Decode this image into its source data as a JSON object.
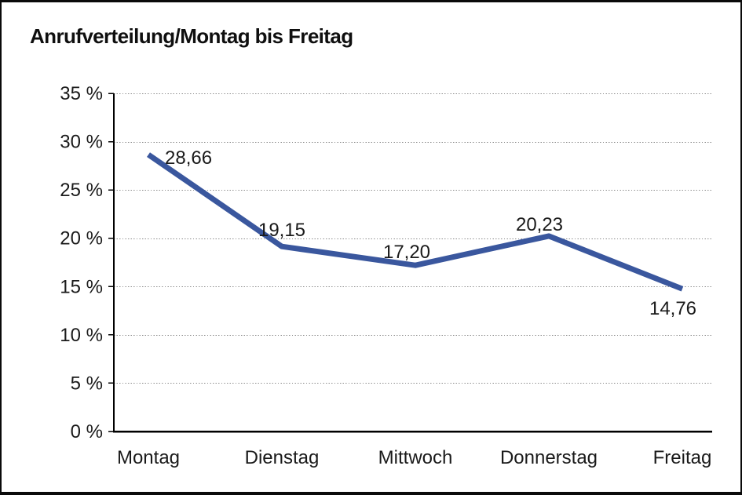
{
  "window": {
    "background": "#ffffff",
    "border_color": "#0a0a0a"
  },
  "chart_data": {
    "type": "line",
    "title": "Anrufverteilung/Montag bis Freitag",
    "categories": [
      "Montag",
      "Dienstag",
      "Mittwoch",
      "Donnerstag",
      "Freitag"
    ],
    "series": [
      {
        "name": "Anrufverteilung",
        "values": [
          28.66,
          19.15,
          17.2,
          20.23,
          14.76
        ],
        "value_labels": [
          "28,66",
          "19,15",
          "17,20",
          "20,23",
          "14,76"
        ],
        "color": "#3A579E"
      }
    ],
    "xlabel": "",
    "ylabel": "",
    "ylim": [
      0,
      35
    ],
    "y_tick_step": 5,
    "y_tick_labels": [
      "35 %",
      "30 %",
      "25 %",
      "20 %",
      "15 %",
      "10 %",
      "5 %",
      "0 %"
    ],
    "grid": "horizontal-dotted",
    "grid_color": "#8c8c8c",
    "axis_color": "#000000",
    "legend": "none",
    "data_labels_shown": true
  }
}
